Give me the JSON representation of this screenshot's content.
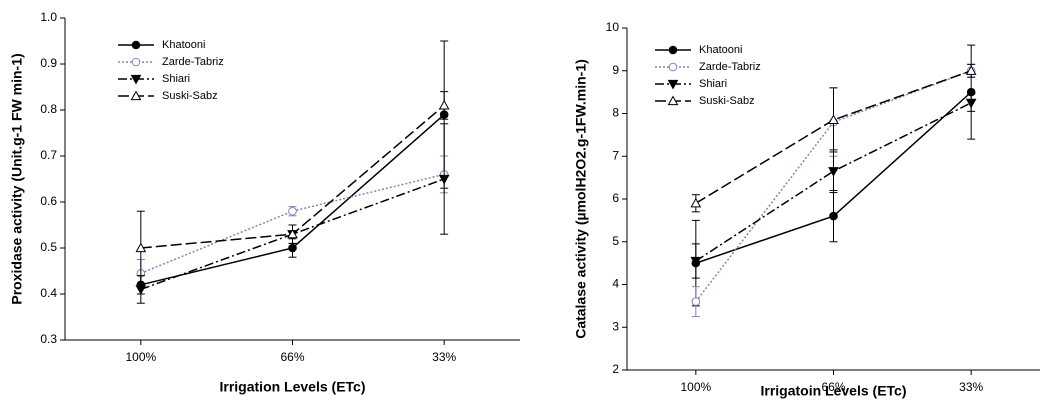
{
  "chart_data": [
    {
      "type": "line",
      "ylabel": "Proxidase activity (Unit.g-1 FW min-1)",
      "xlabel": "Irrigation Levels (ETc)",
      "categories": [
        "100%",
        "66%",
        "33%"
      ],
      "ylim": [
        0.3,
        1.0
      ],
      "yticks": [
        0.3,
        0.4,
        0.5,
        0.6,
        0.7,
        0.8,
        0.9,
        {
          "value": 1.0,
          "label": "1.0"
        }
      ],
      "legend": "upper left",
      "series": [
        {
          "name": "Khatooni",
          "color": "#000000",
          "linestyle": "solid",
          "marker": "circle-filled",
          "values": [
            0.42,
            0.5,
            0.79
          ],
          "errors": [
            0.02,
            0.02,
            0.16
          ]
        },
        {
          "name": "Zarde-Tabriz",
          "color": "#8a7fc0",
          "linestyle": "dotted",
          "marker": "circle-open",
          "values": [
            0.445,
            0.58,
            0.66
          ],
          "errors": [
            0.03,
            0.01,
            0.04
          ]
        },
        {
          "name": "Shiari",
          "color": "#000000",
          "linestyle": "dashdot",
          "marker": "triangle-down-filled",
          "values": [
            0.41,
            0.53,
            0.65
          ],
          "errors": [
            0.03,
            0.02,
            0.12
          ]
        },
        {
          "name": "Suski-Sabz",
          "color": "#000000",
          "linestyle": "dashed",
          "marker": "triangle-up-open",
          "values": [
            0.5,
            0.53,
            0.81
          ],
          "errors": [
            0.08,
            0.02,
            0.03
          ]
        }
      ]
    },
    {
      "type": "line",
      "ylabel": "Catalase activity (µmolH2O2.g-1FW.min-1)",
      "xlabel": "Irrigatoin Levels (ETc)",
      "categories": [
        "100%",
        "66%",
        "33%"
      ],
      "ylim": [
        2,
        10
      ],
      "yticks": [
        2,
        3,
        4,
        5,
        6,
        7,
        8,
        9,
        10
      ],
      "legend": "upper left",
      "series": [
        {
          "name": "Khatooni",
          "color": "#000000",
          "linestyle": "solid",
          "marker": "circle-filled",
          "values": [
            4.5,
            5.6,
            8.5
          ],
          "errors": [
            1.0,
            0.6,
            1.1
          ]
        },
        {
          "name": "Zarde-Tabriz",
          "color": "#8a7fc0",
          "linestyle": "dotted",
          "marker": "circle-open",
          "values": [
            3.6,
            7.8,
            9.0
          ],
          "errors": [
            0.35,
            0.8,
            0.15
          ]
        },
        {
          "name": "Shiari",
          "color": "#000000",
          "linestyle": "dashdot",
          "marker": "triangle-down-filled",
          "values": [
            4.55,
            6.65,
            8.25
          ],
          "errors": [
            0.4,
            0.5,
            0.2
          ]
        },
        {
          "name": "Suski-Sabz",
          "color": "#000000",
          "linestyle": "dashed",
          "marker": "triangle-up-open",
          "values": [
            5.9,
            7.85,
            9.0
          ],
          "errors": [
            0.2,
            0.75,
            0.15
          ]
        }
      ]
    }
  ]
}
